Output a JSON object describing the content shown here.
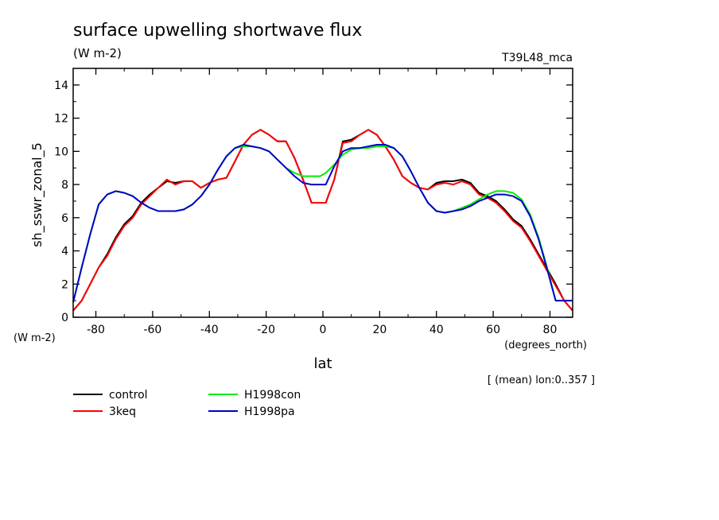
{
  "chart_data": {
    "type": "line",
    "title": "surface upwelling shortwave flux",
    "units": "(W m-2)",
    "experiment": "T39L48_mca",
    "ylabel": "sh_sswr_zonal_5",
    "yunits": "(W m-2)",
    "xlabel": "lat",
    "xunits": "(degrees_north)",
    "note": "[ (mean) lon:0..357 ]",
    "xlim": [
      -88,
      88
    ],
    "ylim": [
      0,
      15
    ],
    "xticks": [
      -80,
      -60,
      -40,
      -20,
      0,
      20,
      40,
      60,
      80
    ],
    "yticks": [
      0,
      2,
      4,
      6,
      8,
      10,
      12,
      14
    ],
    "x": [
      -88,
      -85,
      -82,
      -79,
      -76,
      -73,
      -70,
      -67,
      -64,
      -61,
      -58,
      -55,
      -52,
      -49,
      -46,
      -43,
      -40,
      -37,
      -34,
      -31,
      -28,
      -25,
      -22,
      -19,
      -16,
      -13,
      -10,
      -7,
      -4,
      -1,
      0,
      1,
      4,
      7,
      10,
      13,
      16,
      19,
      22,
      25,
      28,
      31,
      34,
      37,
      40,
      43,
      46,
      49,
      52,
      55,
      58,
      61,
      64,
      67,
      70,
      73,
      76,
      79,
      82,
      85,
      88
    ],
    "series": [
      {
        "name": "control",
        "color": "#000000",
        "values": [
          0.4,
          1.0,
          2.0,
          3.0,
          3.8,
          4.8,
          5.6,
          6.1,
          6.9,
          7.4,
          7.8,
          8.2,
          8.1,
          8.2,
          8.2,
          7.8,
          8.1,
          8.3,
          8.4,
          9.4,
          10.4,
          11.0,
          11.3,
          11.0,
          10.6,
          10.6,
          9.6,
          8.3,
          6.9,
          6.9,
          6.9,
          6.9,
          8.3,
          10.6,
          10.7,
          11.0,
          11.3,
          11.0,
          10.3,
          9.5,
          8.5,
          8.1,
          7.8,
          7.7,
          8.1,
          8.2,
          8.2,
          8.3,
          8.1,
          7.5,
          7.3,
          7.0,
          6.5,
          5.9,
          5.5,
          4.7,
          3.8,
          2.9,
          2.0,
          1.0,
          0.4
        ]
      },
      {
        "name": "3keq",
        "color": "#ff0000",
        "values": [
          0.4,
          1.0,
          2.0,
          3.0,
          3.7,
          4.7,
          5.5,
          6.0,
          6.8,
          7.3,
          7.8,
          8.3,
          8.0,
          8.2,
          8.2,
          7.8,
          8.1,
          8.3,
          8.4,
          9.4,
          10.4,
          11.0,
          11.3,
          11.0,
          10.6,
          10.6,
          9.6,
          8.3,
          6.9,
          6.9,
          6.9,
          6.9,
          8.3,
          10.5,
          10.6,
          11.0,
          11.3,
          11.0,
          10.3,
          9.5,
          8.5,
          8.1,
          7.8,
          7.7,
          8.0,
          8.1,
          8.0,
          8.2,
          8.0,
          7.4,
          7.2,
          6.9,
          6.4,
          5.8,
          5.4,
          4.6,
          3.7,
          2.8,
          1.9,
          1.0,
          0.4
        ]
      },
      {
        "name": "H1998con",
        "color": "#00ee00",
        "values": [
          0.9,
          3.0,
          5.0,
          6.8,
          7.4,
          7.6,
          7.5,
          7.3,
          6.9,
          6.6,
          6.4,
          6.4,
          6.4,
          6.5,
          6.8,
          7.3,
          8.0,
          8.9,
          9.7,
          10.2,
          10.3,
          10.3,
          10.2,
          10.0,
          9.5,
          9.0,
          8.7,
          8.5,
          8.5,
          8.5,
          8.6,
          8.7,
          9.2,
          9.8,
          10.1,
          10.2,
          10.2,
          10.3,
          10.3,
          10.2,
          9.7,
          8.8,
          7.8,
          6.9,
          6.4,
          6.3,
          6.4,
          6.6,
          6.8,
          7.1,
          7.4,
          7.6,
          7.6,
          7.5,
          7.1,
          6.2,
          4.8,
          3.0,
          1.0,
          1.0,
          1.0
        ]
      },
      {
        "name": "H1998pa",
        "color": "#0000cc",
        "values": [
          0.9,
          3.0,
          5.0,
          6.8,
          7.4,
          7.6,
          7.5,
          7.3,
          6.9,
          6.6,
          6.4,
          6.4,
          6.4,
          6.5,
          6.8,
          7.3,
          8.0,
          8.9,
          9.7,
          10.2,
          10.4,
          10.3,
          10.2,
          10.0,
          9.5,
          9.0,
          8.5,
          8.1,
          8.0,
          8.0,
          8.0,
          8.0,
          9.1,
          10.0,
          10.2,
          10.2,
          10.3,
          10.4,
          10.4,
          10.2,
          9.7,
          8.8,
          7.8,
          6.9,
          6.4,
          6.3,
          6.4,
          6.5,
          6.7,
          7.0,
          7.2,
          7.4,
          7.4,
          7.3,
          7.0,
          6.1,
          4.7,
          2.9,
          1.0,
          1.0,
          1.0
        ]
      }
    ],
    "legend": [
      {
        "label": "control",
        "color": "#000000"
      },
      {
        "label": "3keq",
        "color": "#ff0000"
      },
      {
        "label": "H1998con",
        "color": "#00ee00"
      },
      {
        "label": "H1998pa",
        "color": "#0000cc"
      }
    ]
  }
}
